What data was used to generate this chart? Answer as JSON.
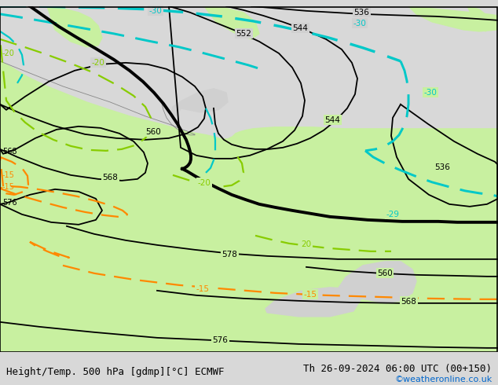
{
  "title_left": "Height/Temp. 500 hPa [gdmp][°C] ECMWF",
  "title_right": "Th 26-09-2024 06:00 UTC (00+150)",
  "credit": "©weatheronline.co.uk",
  "bg_gray": "#d0d0d0",
  "land_green": "#c8f0a0",
  "title_fontsize": 9,
  "credit_color": "#0066cc",
  "black_color": "#000000",
  "cyan_color": "#00c8c8",
  "green_color": "#88cc00",
  "orange_color": "#ff8800",
  "thick_lw": 2.8,
  "thin_lw": 1.3,
  "dash_lw": 1.6
}
